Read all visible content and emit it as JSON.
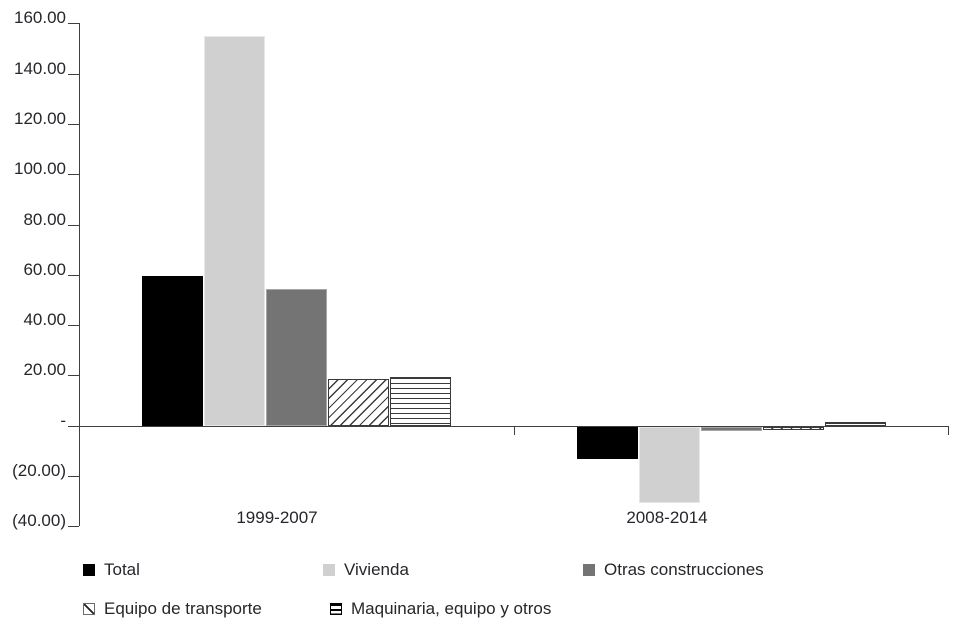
{
  "chart_data": {
    "type": "bar",
    "title": "",
    "categories": [
      "1999-2007",
      "2008-2014"
    ],
    "series": [
      {
        "name": "Total",
        "pattern": "solid-black",
        "values": [
          59.5,
          -13.0
        ]
      },
      {
        "name": "Vivienda",
        "pattern": "solid-lightgray",
        "values": [
          154.8,
          -30.3
        ]
      },
      {
        "name": "Otras construcciones",
        "pattern": "solid-darkgray",
        "values": [
          54.3,
          -1.9
        ]
      },
      {
        "name": "Equipo de transporte",
        "pattern": "hatch-diagonal",
        "values": [
          18.4,
          -1.5
        ]
      },
      {
        "name": "Maquinaria, equipo y otros",
        "pattern": "hatch-horizontal",
        "values": [
          19.5,
          1.4
        ]
      }
    ],
    "y_axis": {
      "min": -40,
      "max": 160,
      "step": 20,
      "tick_values": [
        160,
        140,
        120,
        100,
        80,
        60,
        40,
        20,
        0,
        -20,
        -40
      ],
      "tick_labels": [
        "160.00",
        "140.00",
        "120.00",
        "100.00",
        "80.00",
        "60.00",
        "40.00",
        "20.00",
        "-",
        "(20.00)",
        "(40.00)"
      ]
    },
    "xlabel": "",
    "ylabel": "",
    "grid": false,
    "legend_position": "bottom-left",
    "colors": {
      "black": "#000000",
      "light_gray": "#d1d0d0",
      "dark_gray": "#747474",
      "hatch_line": "#3a3a3a",
      "axis": "#3f3f3f",
      "text": "#26262b"
    }
  }
}
